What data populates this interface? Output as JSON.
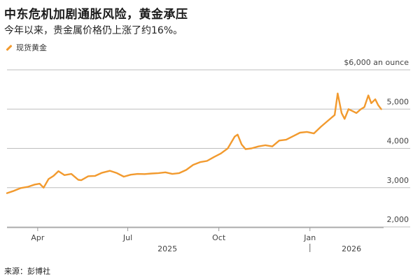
{
  "header": {
    "title": "中东危机加剧通胀风险，黄金承压",
    "subtitle": "今年以来，贵金属价格仍上涨了约16%。"
  },
  "legend": {
    "label": "现货黄金"
  },
  "source": "来源：彭博社",
  "colors": {
    "line": "#f29a2e",
    "grid": "#bdbdbd",
    "axis": "#999999"
  },
  "chart_data": {
    "type": "line",
    "title": "中东危机加剧通胀风险，黄金承压",
    "subtitle": "今年以来，贵金属价格仍上涨了约16%。",
    "ylabel": "",
    "xlabel": "",
    "y_axis_position": "right",
    "ylim": [
      2000,
      6000
    ],
    "yticks": [
      2000,
      3000,
      4000,
      5000,
      6000
    ],
    "ytick_labels": [
      "2,000",
      "3,000",
      "4,000",
      "5,000",
      "$6,000 an ounce"
    ],
    "xlim": [
      "2025-03-01",
      "2026-03-15"
    ],
    "xticks": [
      {
        "date": "2025-04-01",
        "label": "Apr"
      },
      {
        "date": "2025-07-01",
        "label": "Jul"
      },
      {
        "date": "2025-10-01",
        "label": "Oct"
      },
      {
        "date": "2026-01-01",
        "label": "Jan"
      }
    ],
    "year_labels": [
      {
        "date": "2025-08-10",
        "label": "2025"
      },
      {
        "date": "2026-02-12",
        "label": "2026"
      }
    ],
    "year_divider": "2026-01-01",
    "grid": true,
    "legend_position": "top-left",
    "series": [
      {
        "name": "现货黄金",
        "x": [
          "2025-03-01",
          "2025-03-08",
          "2025-03-15",
          "2025-03-22",
          "2025-03-29",
          "2025-04-03",
          "2025-04-07",
          "2025-04-12",
          "2025-04-17",
          "2025-04-22",
          "2025-04-28",
          "2025-05-05",
          "2025-05-12",
          "2025-05-15",
          "2025-05-22",
          "2025-05-29",
          "2025-06-05",
          "2025-06-13",
          "2025-06-20",
          "2025-06-27",
          "2025-07-04",
          "2025-07-11",
          "2025-07-18",
          "2025-07-25",
          "2025-08-01",
          "2025-08-08",
          "2025-08-15",
          "2025-08-22",
          "2025-08-29",
          "2025-09-05",
          "2025-09-12",
          "2025-09-19",
          "2025-09-26",
          "2025-10-03",
          "2025-10-10",
          "2025-10-17",
          "2025-10-20",
          "2025-10-24",
          "2025-10-28",
          "2025-11-03",
          "2025-11-10",
          "2025-11-17",
          "2025-11-24",
          "2025-12-01",
          "2025-12-08",
          "2025-12-15",
          "2025-12-22",
          "2025-12-29",
          "2026-01-05",
          "2026-01-12",
          "2026-01-19",
          "2026-01-26",
          "2026-01-29",
          "2026-02-02",
          "2026-02-05",
          "2026-02-09",
          "2026-02-13",
          "2026-02-17",
          "2026-02-21",
          "2026-02-25",
          "2026-03-01",
          "2026-03-04",
          "2026-03-08",
          "2026-03-11",
          "2026-03-14"
        ],
        "y": [
          2860,
          2920,
          2990,
          3020,
          3080,
          3100,
          3000,
          3220,
          3300,
          3420,
          3320,
          3350,
          3200,
          3190,
          3290,
          3300,
          3380,
          3430,
          3370,
          3280,
          3330,
          3350,
          3345,
          3360,
          3370,
          3390,
          3350,
          3370,
          3450,
          3580,
          3650,
          3680,
          3780,
          3870,
          4000,
          4300,
          4350,
          4100,
          3980,
          4000,
          4050,
          4080,
          4050,
          4200,
          4220,
          4310,
          4400,
          4420,
          4380,
          4550,
          4700,
          4850,
          5400,
          4900,
          4750,
          5000,
          4950,
          4900,
          4990,
          5050,
          5350,
          5150,
          5250,
          5100,
          5000
        ]
      }
    ]
  }
}
